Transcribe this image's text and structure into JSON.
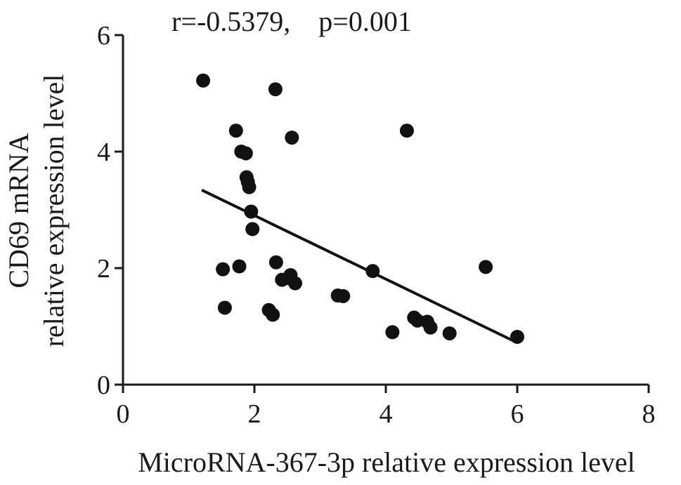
{
  "chart_data": {
    "type": "scatter",
    "annotation": "r=-0.5379, p=0.001",
    "xlabel": "MicroRNA-367-3p relative expression level",
    "ylabel_line1": "CD69 mRNA",
    "ylabel_line2": "relative expression level",
    "xlim": [
      0,
      8
    ],
    "ylim": [
      0,
      6
    ],
    "xticks": [
      "0",
      "2",
      "4",
      "6",
      "8"
    ],
    "yticks": [
      "0",
      "2",
      "4",
      "6"
    ],
    "grid": false,
    "series": [
      {
        "points": [
          [
            1.22,
            5.22
          ],
          [
            2.32,
            5.07
          ],
          [
            1.72,
            4.36
          ],
          [
            2.57,
            4.24
          ],
          [
            4.32,
            4.36
          ],
          [
            1.8,
            4.0
          ],
          [
            1.87,
            3.97
          ],
          [
            1.88,
            3.56
          ],
          [
            1.9,
            3.48
          ],
          [
            1.92,
            3.39
          ],
          [
            1.95,
            2.97
          ],
          [
            1.97,
            2.67
          ],
          [
            1.52,
            1.98
          ],
          [
            1.77,
            2.03
          ],
          [
            2.33,
            2.1
          ],
          [
            2.42,
            1.8
          ],
          [
            2.52,
            1.83
          ],
          [
            2.55,
            1.88
          ],
          [
            2.62,
            1.74
          ],
          [
            3.27,
            1.53
          ],
          [
            3.35,
            1.52
          ],
          [
            3.8,
            1.95
          ],
          [
            1.55,
            1.32
          ],
          [
            2.22,
            1.28
          ],
          [
            2.28,
            1.2
          ],
          [
            4.43,
            1.15
          ],
          [
            4.48,
            1.1
          ],
          [
            4.63,
            1.08
          ],
          [
            4.68,
            0.98
          ],
          [
            4.1,
            0.9
          ],
          [
            4.97,
            0.88
          ],
          [
            5.52,
            2.02
          ],
          [
            6.0,
            0.82
          ]
        ]
      }
    ],
    "fit_line": {
      "x": [
        1.2,
        6.0
      ],
      "y": [
        3.34,
        0.72
      ]
    }
  }
}
